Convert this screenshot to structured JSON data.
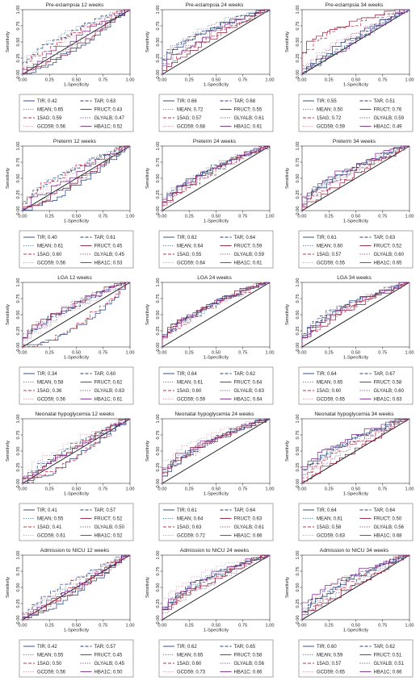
{
  "layout_note_free": true,
  "shared": {
    "xlabel": "1-Specificity",
    "ylabel": "Sensitivity",
    "ticks": [
      "0.00",
      "0.25",
      "0.50",
      "0.75",
      "1.00"
    ],
    "series_styles": [
      {
        "key": "TIR",
        "color": "#1f3f7a",
        "dash": "solid"
      },
      {
        "key": "TAR",
        "color": "#1f3f7a",
        "dash": "dashed"
      },
      {
        "key": "MEAN",
        "color": "#5a7fa8",
        "dash": "dotted"
      },
      {
        "key": "FRUCT",
        "color": "#8b1a3a",
        "dash": "solid"
      },
      {
        "key": "15AG",
        "color": "#c0304a",
        "dash": "dashed"
      },
      {
        "key": "GLYALB",
        "color": "#7a4f8a",
        "dash": "dotted"
      },
      {
        "key": "GCD59",
        "color": "#d49aa8",
        "dash": "dotted"
      },
      {
        "key": "HBA1C",
        "color": "#7a2a8a",
        "dash": "solid"
      }
    ]
  },
  "chart_data": [
    {
      "type": "line",
      "title": "Pre-eclampsia 12 weeks",
      "xlabel": "1-Specificity",
      "ylabel": "Sensitivity",
      "xlim": [
        0,
        1
      ],
      "ylim": [
        0,
        1
      ],
      "legend": [
        {
          "text": "TIR; 0.42",
          "v": 0.42
        },
        {
          "text": "TAR; 0.63",
          "v": 0.63
        },
        {
          "text": "MEAN; 0.65",
          "v": 0.65
        },
        {
          "text": "FRUCT; 0.43",
          "v": 0.43
        },
        {
          "text": "15AG; 0.59",
          "v": 0.59
        },
        {
          "text": "GLYALB; 0.47",
          "v": 0.47
        },
        {
          "text": "GCD59; 0.56",
          "v": 0.56
        },
        {
          "text": "HBA1C; 0.52",
          "v": 0.52
        }
      ]
    },
    {
      "type": "line",
      "title": "Pre-eclampsia 24 weeks",
      "xlabel": "1-Specificity",
      "ylabel": "Sensitivity",
      "xlim": [
        0,
        1
      ],
      "ylim": [
        0,
        1
      ],
      "legend": [
        {
          "text": "TIR; 0.66",
          "v": 0.66
        },
        {
          "text": "TAR; 0.68",
          "v": 0.68
        },
        {
          "text": "MEAN; 0.72",
          "v": 0.72
        },
        {
          "text": "FRUCT; 0.55",
          "v": 0.55
        },
        {
          "text": "15AG; 0.57",
          "v": 0.57
        },
        {
          "text": "GLYALB; 0.61",
          "v": 0.61
        },
        {
          "text": "GCD59; 0.68",
          "v": 0.68
        },
        {
          "text": "HBA1C; 0.61",
          "v": 0.61
        }
      ]
    },
    {
      "type": "line",
      "title": "Pre-eclampsia 34 weeks",
      "xlabel": "1-Specificity",
      "ylabel": "Sensitivity",
      "xlim": [
        0,
        1
      ],
      "ylim": [
        0,
        1
      ],
      "legend": [
        {
          "text": "TIR; 0.55",
          "v": 0.55
        },
        {
          "text": "TAR; 0.51",
          "v": 0.51
        },
        {
          "text": "MEAN; 0.50",
          "v": 0.5
        },
        {
          "text": "FRUCT; 0.76",
          "v": 0.76
        },
        {
          "text": "15AG; 0.72",
          "v": 0.72
        },
        {
          "text": "GLYALB; 0.59",
          "v": 0.59
        },
        {
          "text": "GCD59; 0.59",
          "v": 0.59
        },
        {
          "text": "HBA1C; 0.49",
          "v": 0.49
        }
      ]
    },
    {
      "type": "line",
      "title": "Preterm 12 weeks",
      "xlabel": "1-Specificity",
      "ylabel": "Sensitivity",
      "xlim": [
        0,
        1
      ],
      "ylim": [
        0,
        1
      ],
      "legend": [
        {
          "text": "TIR; 0.40",
          "v": 0.4
        },
        {
          "text": "TAR; 0.61",
          "v": 0.61
        },
        {
          "text": "MEAN; 0.61",
          "v": 0.61
        },
        {
          "text": "FRUCT; 0.45",
          "v": 0.45
        },
        {
          "text": "15AG; 0.60",
          "v": 0.6
        },
        {
          "text": "GLYALB; 0.45",
          "v": 0.45
        },
        {
          "text": "GCD59; 0.56",
          "v": 0.56
        },
        {
          "text": "HBA1C; 0.53",
          "v": 0.53
        }
      ]
    },
    {
      "type": "line",
      "title": "Preterm 24 weeks",
      "xlabel": "1-Specificity",
      "ylabel": "Sensitivity",
      "xlim": [
        0,
        1
      ],
      "ylim": [
        0,
        1
      ],
      "legend": [
        {
          "text": "TIR; 0.62",
          "v": 0.62
        },
        {
          "text": "TAR; 0.64",
          "v": 0.64
        },
        {
          "text": "MEAN; 0.64",
          "v": 0.64
        },
        {
          "text": "FRUCT; 0.59",
          "v": 0.59
        },
        {
          "text": "15AG; 0.55",
          "v": 0.55
        },
        {
          "text": "GLYALB; 0.59",
          "v": 0.59
        },
        {
          "text": "GCD59; 0.64",
          "v": 0.64
        },
        {
          "text": "HBA1C; 0.61",
          "v": 0.61
        }
      ]
    },
    {
      "type": "line",
      "title": "Preterm 34 weeks",
      "xlabel": "1-Specificity",
      "ylabel": "Sensitivity",
      "xlim": [
        0,
        1
      ],
      "ylim": [
        0,
        1
      ],
      "legend": [
        {
          "text": "TIR; 0.61",
          "v": 0.61
        },
        {
          "text": "TAR; 0.63",
          "v": 0.63
        },
        {
          "text": "MEAN; 0.60",
          "v": 0.6
        },
        {
          "text": "FRUCT; 0.52",
          "v": 0.52
        },
        {
          "text": "15AG; 0.57",
          "v": 0.57
        },
        {
          "text": "GLYALB; 0.60",
          "v": 0.6
        },
        {
          "text": "GCD59; 0.55",
          "v": 0.55
        },
        {
          "text": "HBA1C; 0.65",
          "v": 0.65
        }
      ]
    },
    {
      "type": "line",
      "title": "LGA 12 weeks",
      "xlabel": "1-Specificity",
      "ylabel": "Sensitivity",
      "xlim": [
        0,
        1
      ],
      "ylim": [
        0,
        1
      ],
      "legend": [
        {
          "text": "TIR; 0.34",
          "v": 0.34
        },
        {
          "text": "TAR; 0.60",
          "v": 0.6
        },
        {
          "text": "MEAN; 0.58",
          "v": 0.58
        },
        {
          "text": "FRUCT; 0.62",
          "v": 0.62
        },
        {
          "text": "15AG; 0.36",
          "v": 0.36
        },
        {
          "text": "GLYALB; 0.63",
          "v": 0.63
        },
        {
          "text": "GCD59; 0.56",
          "v": 0.56
        },
        {
          "text": "HBA1C; 0.61",
          "v": 0.61
        }
      ]
    },
    {
      "type": "line",
      "title": "LGA 24 weeks",
      "xlabel": "1-Specificity",
      "ylabel": "Sensitivity",
      "xlim": [
        0,
        1
      ],
      "ylim": [
        0,
        1
      ],
      "legend": [
        {
          "text": "TIR; 0.64",
          "v": 0.64
        },
        {
          "text": "TAR; 0.62",
          "v": 0.62
        },
        {
          "text": "MEAN; 0.61",
          "v": 0.61
        },
        {
          "text": "FRUCT; 0.64",
          "v": 0.64
        },
        {
          "text": "15AG; 0.60",
          "v": 0.6
        },
        {
          "text": "GLYALB; 0.63",
          "v": 0.63
        },
        {
          "text": "GCD59; 0.59",
          "v": 0.59
        },
        {
          "text": "HBA1C; 0.64",
          "v": 0.64
        }
      ]
    },
    {
      "type": "line",
      "title": "LGA 34 weeks",
      "xlabel": "1-Specificity",
      "ylabel": "Sensitivity",
      "xlim": [
        0,
        1
      ],
      "ylim": [
        0,
        1
      ],
      "legend": [
        {
          "text": "TIR; 0.64",
          "v": 0.64
        },
        {
          "text": "TAR; 0.67",
          "v": 0.67
        },
        {
          "text": "MEAN; 0.65",
          "v": 0.65
        },
        {
          "text": "FRUCT; 0.58",
          "v": 0.58
        },
        {
          "text": "15AG; 0.60",
          "v": 0.6
        },
        {
          "text": "GLYALB; 0.60",
          "v": 0.6
        },
        {
          "text": "GCD59; 0.65",
          "v": 0.65
        },
        {
          "text": "HBA1C; 0.63",
          "v": 0.63
        }
      ]
    },
    {
      "type": "line",
      "title": "Neonatal hypoglycemia 12 weeks",
      "xlabel": "1-Specificity",
      "ylabel": "Sensitivity",
      "xlim": [
        0,
        1
      ],
      "ylim": [
        0,
        1
      ],
      "legend": [
        {
          "text": "TIR; 0.41",
          "v": 0.41
        },
        {
          "text": "TAR; 0.57",
          "v": 0.57
        },
        {
          "text": "MEAN; 0.55",
          "v": 0.55
        },
        {
          "text": "FRUCT; 0.52",
          "v": 0.52
        },
        {
          "text": "15AG; 0.41",
          "v": 0.41
        },
        {
          "text": "GLYALB; 0.50",
          "v": 0.5
        },
        {
          "text": "GCD59; 0.61",
          "v": 0.61
        },
        {
          "text": "HBA1C; 0.52",
          "v": 0.52
        }
      ]
    },
    {
      "type": "line",
      "title": "Neonatal hypoglycemia 24 weeks",
      "xlabel": "1-Specificity",
      "ylabel": "Sensitivity",
      "xlim": [
        0,
        1
      ],
      "ylim": [
        0,
        1
      ],
      "legend": [
        {
          "text": "TIR; 0.61",
          "v": 0.61
        },
        {
          "text": "TAR; 0.64",
          "v": 0.64
        },
        {
          "text": "MEAN; 0.64",
          "v": 0.64
        },
        {
          "text": "FRUCT; 0.63",
          "v": 0.63
        },
        {
          "text": "15AG; 0.63",
          "v": 0.63
        },
        {
          "text": "GLYALB; 0.61",
          "v": 0.61
        },
        {
          "text": "GCD59; 0.72",
          "v": 0.72
        },
        {
          "text": "HBA1C; 0.66",
          "v": 0.66
        }
      ]
    },
    {
      "type": "line",
      "title": "Neonatal hypoglycemia 34 weeks",
      "xlabel": "1-Specificity",
      "ylabel": "Sensitivity",
      "xlim": [
        0,
        1
      ],
      "ylim": [
        0,
        1
      ],
      "legend": [
        {
          "text": "TIR; 0.64",
          "v": 0.64
        },
        {
          "text": "TAR; 0.64",
          "v": 0.64
        },
        {
          "text": "MEAN; 0.61",
          "v": 0.61
        },
        {
          "text": "FRUCT; 0.50",
          "v": 0.5
        },
        {
          "text": "15AG; 0.58",
          "v": 0.58
        },
        {
          "text": "GLYALB; 0.56",
          "v": 0.56
        },
        {
          "text": "GCD59; 0.63",
          "v": 0.63
        },
        {
          "text": "HBA1C; 0.68",
          "v": 0.68
        }
      ]
    },
    {
      "type": "line",
      "title": "Admission to NICU 12 weeks",
      "xlabel": "1-Specificity",
      "ylabel": "Sensitivity",
      "xlim": [
        0,
        1
      ],
      "ylim": [
        0,
        1
      ],
      "legend": [
        {
          "text": "TIR; 0.42",
          "v": 0.42
        },
        {
          "text": "TAR; 0.57",
          "v": 0.57
        },
        {
          "text": "MEAN; 0.55",
          "v": 0.55
        },
        {
          "text": "FRUCT; 0.45",
          "v": 0.45
        },
        {
          "text": "15AG; 0.50",
          "v": 0.5
        },
        {
          "text": "GLYALB; 0.45",
          "v": 0.45
        },
        {
          "text": "GCD59; 0.56",
          "v": 0.56
        },
        {
          "text": "HBA1C; 0.50",
          "v": 0.5
        }
      ]
    },
    {
      "type": "line",
      "title": "Admission to NICU 24 weeks",
      "xlabel": "1-Specificity",
      "ylabel": "Sensitivity",
      "xlim": [
        0,
        1
      ],
      "ylim": [
        0,
        1
      ],
      "legend": [
        {
          "text": "TIR; 0.62",
          "v": 0.62
        },
        {
          "text": "TAR; 0.65",
          "v": 0.65
        },
        {
          "text": "MEAN; 0.65",
          "v": 0.65
        },
        {
          "text": "FRUCT; 0.58",
          "v": 0.58
        },
        {
          "text": "15AG; 0.60",
          "v": 0.6
        },
        {
          "text": "GLYALB; 0.56",
          "v": 0.56
        },
        {
          "text": "GCD59; 0.73",
          "v": 0.73
        },
        {
          "text": "HBA1C; 0.66",
          "v": 0.66
        }
      ]
    },
    {
      "type": "line",
      "title": "Admission to NICU 34 weeks",
      "xlabel": "1-Specificity",
      "ylabel": "Sensitivity",
      "xlim": [
        0,
        1
      ],
      "ylim": [
        0,
        1
      ],
      "legend": [
        {
          "text": "TIR; 0.60",
          "v": 0.6
        },
        {
          "text": "TAR; 0.62",
          "v": 0.62
        },
        {
          "text": "MEAN; 0.59",
          "v": 0.59
        },
        {
          "text": "FRUCT; 0.51",
          "v": 0.51
        },
        {
          "text": "15AG; 0.57",
          "v": 0.57
        },
        {
          "text": "GLYALB; 0.51",
          "v": 0.51
        },
        {
          "text": "GCD59; 0.65",
          "v": 0.65
        },
        {
          "text": "HBA1C; 0.66",
          "v": 0.66
        }
      ]
    }
  ]
}
